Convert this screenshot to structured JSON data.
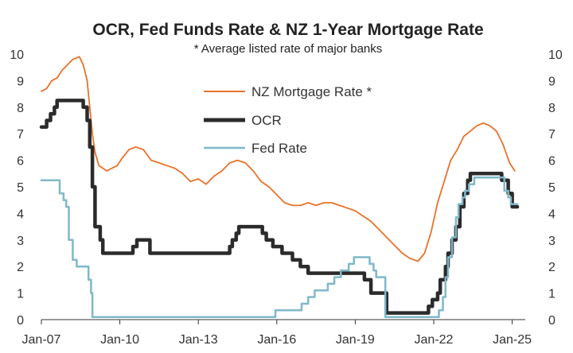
{
  "chart_data": {
    "type": "line",
    "title": "OCR, Fed Funds Rate & NZ 1-Year Mortgage Rate",
    "subtitle": "* Average listed rate of major banks",
    "xlabel": "",
    "ylabel": "",
    "x_ticks": [
      "Jan-07",
      "Jan-10",
      "Jan-13",
      "Jan-16",
      "Jan-19",
      "Jan-22",
      "Jan-25"
    ],
    "xlim": [
      2007.0,
      2025.5
    ],
    "ylim": [
      0,
      10
    ],
    "y_ticks": [
      0,
      1,
      2,
      3,
      4,
      5,
      6,
      7,
      8,
      9,
      10
    ],
    "grid": false,
    "legend_position": "top-center",
    "series": [
      {
        "name": "NZ Mortgage Rate *",
        "color": "#e8722a",
        "step": false,
        "points": [
          [
            2007.0,
            8.6
          ],
          [
            2007.2,
            8.7
          ],
          [
            2007.4,
            9.0
          ],
          [
            2007.6,
            9.1
          ],
          [
            2007.8,
            9.4
          ],
          [
            2008.0,
            9.6
          ],
          [
            2008.2,
            9.8
          ],
          [
            2008.45,
            9.9
          ],
          [
            2008.6,
            9.6
          ],
          [
            2008.75,
            9.0
          ],
          [
            2008.85,
            8.0
          ],
          [
            2008.95,
            7.0
          ],
          [
            2009.05,
            6.3
          ],
          [
            2009.2,
            5.8
          ],
          [
            2009.35,
            5.7
          ],
          [
            2009.5,
            5.6
          ],
          [
            2009.7,
            5.7
          ],
          [
            2009.9,
            5.8
          ],
          [
            2010.1,
            6.1
          ],
          [
            2010.35,
            6.4
          ],
          [
            2010.6,
            6.5
          ],
          [
            2010.9,
            6.4
          ],
          [
            2011.2,
            6.0
          ],
          [
            2011.5,
            5.9
          ],
          [
            2011.8,
            5.8
          ],
          [
            2012.1,
            5.7
          ],
          [
            2012.4,
            5.5
          ],
          [
            2012.7,
            5.2
          ],
          [
            2013.0,
            5.3
          ],
          [
            2013.3,
            5.1
          ],
          [
            2013.6,
            5.4
          ],
          [
            2013.9,
            5.6
          ],
          [
            2014.2,
            5.9
          ],
          [
            2014.5,
            6.0
          ],
          [
            2014.8,
            5.9
          ],
          [
            2015.1,
            5.6
          ],
          [
            2015.4,
            5.2
          ],
          [
            2015.7,
            5.0
          ],
          [
            2016.0,
            4.7
          ],
          [
            2016.3,
            4.4
          ],
          [
            2016.6,
            4.3
          ],
          [
            2016.9,
            4.3
          ],
          [
            2017.2,
            4.4
          ],
          [
            2017.5,
            4.3
          ],
          [
            2017.8,
            4.4
          ],
          [
            2018.1,
            4.4
          ],
          [
            2018.4,
            4.3
          ],
          [
            2018.7,
            4.2
          ],
          [
            2019.0,
            4.1
          ],
          [
            2019.3,
            3.9
          ],
          [
            2019.6,
            3.7
          ],
          [
            2019.9,
            3.4
          ],
          [
            2020.2,
            3.1
          ],
          [
            2020.5,
            2.8
          ],
          [
            2020.8,
            2.5
          ],
          [
            2021.1,
            2.3
          ],
          [
            2021.4,
            2.2
          ],
          [
            2021.65,
            2.5
          ],
          [
            2021.9,
            3.3
          ],
          [
            2022.15,
            4.4
          ],
          [
            2022.4,
            5.2
          ],
          [
            2022.65,
            6.0
          ],
          [
            2022.9,
            6.4
          ],
          [
            2023.15,
            6.9
          ],
          [
            2023.4,
            7.1
          ],
          [
            2023.65,
            7.3
          ],
          [
            2023.9,
            7.4
          ],
          [
            2024.15,
            7.3
          ],
          [
            2024.4,
            7.1
          ],
          [
            2024.65,
            6.6
          ],
          [
            2024.9,
            5.9
          ],
          [
            2025.1,
            5.6
          ]
        ]
      },
      {
        "name": "OCR",
        "color": "#2b2b2b",
        "step": true,
        "points": [
          [
            2007.0,
            7.25
          ],
          [
            2007.2,
            7.5
          ],
          [
            2007.35,
            7.75
          ],
          [
            2007.5,
            8.0
          ],
          [
            2007.6,
            8.25
          ],
          [
            2008.6,
            8.0
          ],
          [
            2008.75,
            7.5
          ],
          [
            2008.85,
            6.5
          ],
          [
            2008.95,
            5.0
          ],
          [
            2009.05,
            3.5
          ],
          [
            2009.25,
            3.0
          ],
          [
            2009.35,
            2.5
          ],
          [
            2010.5,
            2.75
          ],
          [
            2010.65,
            3.0
          ],
          [
            2011.15,
            2.5
          ],
          [
            2014.2,
            2.75
          ],
          [
            2014.3,
            3.0
          ],
          [
            2014.45,
            3.25
          ],
          [
            2014.55,
            3.5
          ],
          [
            2015.45,
            3.25
          ],
          [
            2015.6,
            3.0
          ],
          [
            2015.85,
            2.75
          ],
          [
            2016.2,
            2.5
          ],
          [
            2016.6,
            2.25
          ],
          [
            2016.9,
            2.0
          ],
          [
            2017.2,
            1.75
          ],
          [
            2019.35,
            1.5
          ],
          [
            2019.6,
            1.0
          ],
          [
            2020.2,
            0.25
          ],
          [
            2021.8,
            0.5
          ],
          [
            2021.95,
            0.75
          ],
          [
            2022.15,
            1.0
          ],
          [
            2022.25,
            1.5
          ],
          [
            2022.45,
            2.0
          ],
          [
            2022.55,
            2.5
          ],
          [
            2022.7,
            3.0
          ],
          [
            2022.85,
            3.5
          ],
          [
            2023.0,
            4.25
          ],
          [
            2023.15,
            4.75
          ],
          [
            2023.3,
            5.25
          ],
          [
            2023.4,
            5.5
          ],
          [
            2024.6,
            5.25
          ],
          [
            2024.85,
            4.75
          ],
          [
            2025.0,
            4.25
          ],
          [
            2025.2,
            4.25
          ]
        ]
      },
      {
        "name": "Fed Rate",
        "color": "#7fb8c9",
        "step": true,
        "points": [
          [
            2007.0,
            5.25
          ],
          [
            2007.7,
            4.75
          ],
          [
            2007.85,
            4.5
          ],
          [
            2007.95,
            4.25
          ],
          [
            2008.05,
            3.0
          ],
          [
            2008.2,
            2.25
          ],
          [
            2008.35,
            2.0
          ],
          [
            2008.8,
            1.5
          ],
          [
            2008.9,
            1.0
          ],
          [
            2008.95,
            0.1
          ],
          [
            2015.95,
            0.35
          ],
          [
            2016.95,
            0.6
          ],
          [
            2017.2,
            0.85
          ],
          [
            2017.45,
            1.1
          ],
          [
            2017.95,
            1.35
          ],
          [
            2018.2,
            1.6
          ],
          [
            2018.45,
            1.85
          ],
          [
            2018.75,
            2.1
          ],
          [
            2018.95,
            2.35
          ],
          [
            2019.55,
            2.1
          ],
          [
            2019.7,
            1.85
          ],
          [
            2019.8,
            1.6
          ],
          [
            2020.15,
            0.1
          ],
          [
            2022.2,
            0.35
          ],
          [
            2022.35,
            0.85
          ],
          [
            2022.45,
            1.6
          ],
          [
            2022.55,
            2.35
          ],
          [
            2022.7,
            3.1
          ],
          [
            2022.85,
            3.85
          ],
          [
            2022.95,
            4.35
          ],
          [
            2023.1,
            4.6
          ],
          [
            2023.2,
            4.85
          ],
          [
            2023.35,
            5.1
          ],
          [
            2023.55,
            5.35
          ],
          [
            2024.7,
            4.85
          ],
          [
            2024.85,
            4.6
          ],
          [
            2024.95,
            4.35
          ],
          [
            2025.2,
            4.35
          ]
        ]
      }
    ]
  }
}
